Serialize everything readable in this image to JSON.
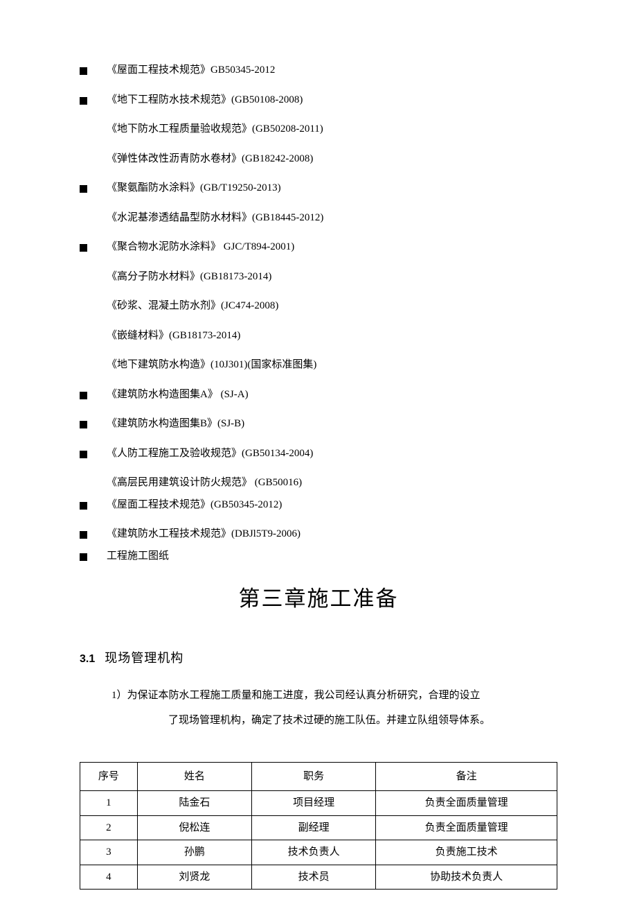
{
  "standards": [
    {
      "bullet": true,
      "lines": [
        "《屋面工程技术规范》GB50345-2012"
      ]
    },
    {
      "bullet": true,
      "lines": [
        "《地下工程防水技术规范》(GB50108-2008)",
        "《地下防水工程质量验收规范》(GB50208-2011)",
        "《弹性体改性沥青防水卷材》(GB18242-2008)"
      ]
    },
    {
      "bullet": true,
      "lines": [
        "《聚氨酯防水涂料》(GB/T19250-2013)",
        "《水泥基渗透结晶型防水材料》(GB18445-2012)"
      ]
    },
    {
      "bullet": true,
      "lines": [
        "《聚合物水泥防水涂料》 GJC/T894-2001)",
        "《高分子防水材料》(GB18173-2014)",
        "《砂浆、混凝土防水剂》(JC474-2008)",
        "《嵌缝材料》(GB18173-2014)",
        "《地下建筑防水构造》(10J301)(国家标准图集)"
      ]
    },
    {
      "bullet": true,
      "lines": [
        "《建筑防水构造图集A》  (SJ-A)"
      ]
    },
    {
      "bullet": true,
      "lines": [
        "《建筑防水构造图集B》(SJ-B)"
      ]
    },
    {
      "bullet": true,
      "lines": [
        "《人防工程施工及验收规范》(GB50134-2004)",
        "《高层民用建筑设计防火规范》 (GB50016)"
      ],
      "tight_after": true
    },
    {
      "bullet": true,
      "lines": [
        "《屋面工程技术规范》(GB50345-2012)"
      ]
    },
    {
      "bullet": true,
      "lines": [
        "《建筑防水工程技术规范》(DBJl5T9-2006)"
      ],
      "tight_after": true
    },
    {
      "bullet": true,
      "lines": [
        "工程施工图纸"
      ],
      "last": true
    }
  ],
  "chapter": {
    "title": "第三章施工准备"
  },
  "section": {
    "number": "3.1",
    "title": "现场管理机构",
    "paragraph_line1": "1）为保证本防水工程施工质量和施工进度，我公司经认真分析研究，合理的设立",
    "paragraph_line2": "了现场管理机构，确定了技术过硬的施工队伍。并建立队组领导体系。"
  },
  "table": {
    "headers": [
      "序号",
      "姓名",
      "职务",
      "备注"
    ],
    "column_widths": [
      "12%",
      "24%",
      "26%",
      "38%"
    ],
    "rows": [
      [
        "1",
        "陆金石",
        "项目经理",
        "负责全面质量管理"
      ],
      [
        "2",
        "倪松连",
        "副经理",
        "负责全面质量管理"
      ],
      [
        "3",
        "孙鹏",
        "技术负责人",
        "负责施工技术"
      ],
      [
        "4",
        "刘贤龙",
        "技术员",
        "协助技术负责人"
      ]
    ]
  },
  "colors": {
    "text": "#000000",
    "background": "#ffffff",
    "border": "#000000"
  }
}
